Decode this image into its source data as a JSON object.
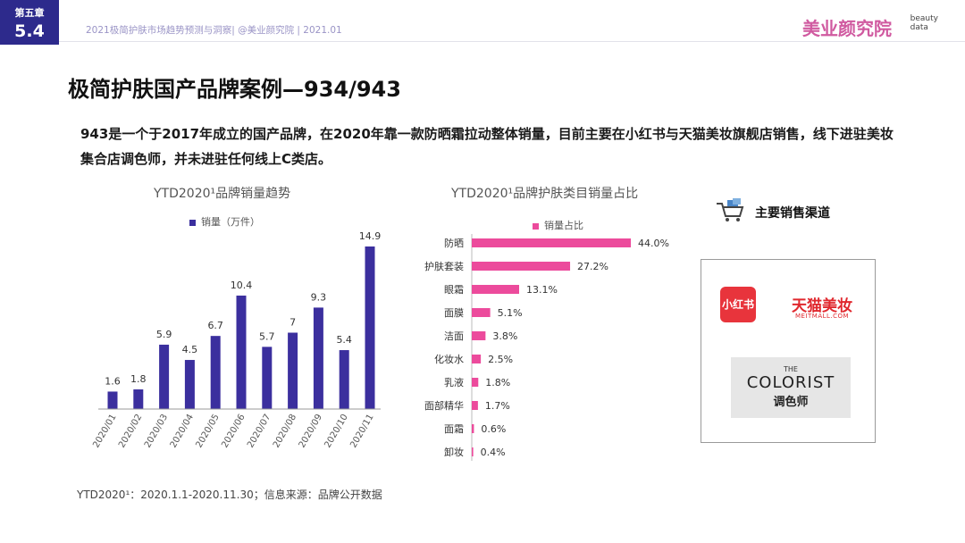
{
  "header": {
    "chapter_label": "第五章",
    "chapter_num": "5.4",
    "report_line": "2021极简护肤市场趋势预测与洞察| @美业颜究院 | 2021.01",
    "brand_cn": "美业颜究院",
    "brand_en_1": "beauty",
    "brand_en_2": "data"
  },
  "title": "极简护肤国产品牌案例—934/943",
  "description": "943是一个于2017年成立的国产品牌，在2020年靠一款防晒霜拉动整体销量，目前主要在小红书与天猫美妆旗舰店销售，线下进驻美妆集合店调色师，并未进驻任何线上C类店。",
  "chart_data": [
    {
      "type": "bar",
      "title": "YTD2020¹品牌销量趋势",
      "categories": [
        "2020/01",
        "2020/02",
        "2020/03",
        "2020/04",
        "2020/05",
        "2020/06",
        "2020/07",
        "2020/08",
        "2020/09",
        "2020/10",
        "2020/11"
      ],
      "series": [
        {
          "name": "销量（万件）",
          "values": [
            1.6,
            1.8,
            5.9,
            4.5,
            6.7,
            10.4,
            5.7,
            7.0,
            9.3,
            5.4,
            14.9
          ]
        }
      ],
      "ylim": [
        0,
        14.9
      ],
      "color": "#3b2f9e",
      "grid": false
    },
    {
      "type": "bar",
      "orientation": "horizontal",
      "title": "YTD2020¹品牌护肤类目销量占比",
      "categories": [
        "防晒",
        "护肤套装",
        "眼霜",
        "面膜",
        "洁面",
        "化妆水",
        "乳液",
        "面部精华",
        "面霜",
        "卸妆"
      ],
      "series": [
        {
          "name": "销量占比",
          "values": [
            44.0,
            27.2,
            13.1,
            5.1,
            3.8,
            2.5,
            1.8,
            1.7,
            0.6,
            0.4
          ]
        }
      ],
      "value_labels": [
        "44.0%",
        "27.2%",
        "13.1%",
        "5.1%",
        "3.8%",
        "2.5%",
        "1.8%",
        "1.7%",
        "0.6%",
        "0.4%"
      ],
      "unit": "%",
      "xlim": [
        0,
        44
      ],
      "color": "#ec4b9c",
      "grid": false
    }
  ],
  "footnote": "YTD2020¹：2020.1.1-2020.11.30；信息来源：品牌公开数据",
  "channels": {
    "title": "主要销售渠道",
    "cart_icon": "shopping-cart-icon",
    "xiaohongshu": "小红书",
    "tmall": "天猫美妆",
    "tmall_sub": "MEITMALL.COM",
    "colorist_the": "THE",
    "colorist_name": "COLORIST",
    "colorist_cn": "调色师"
  }
}
